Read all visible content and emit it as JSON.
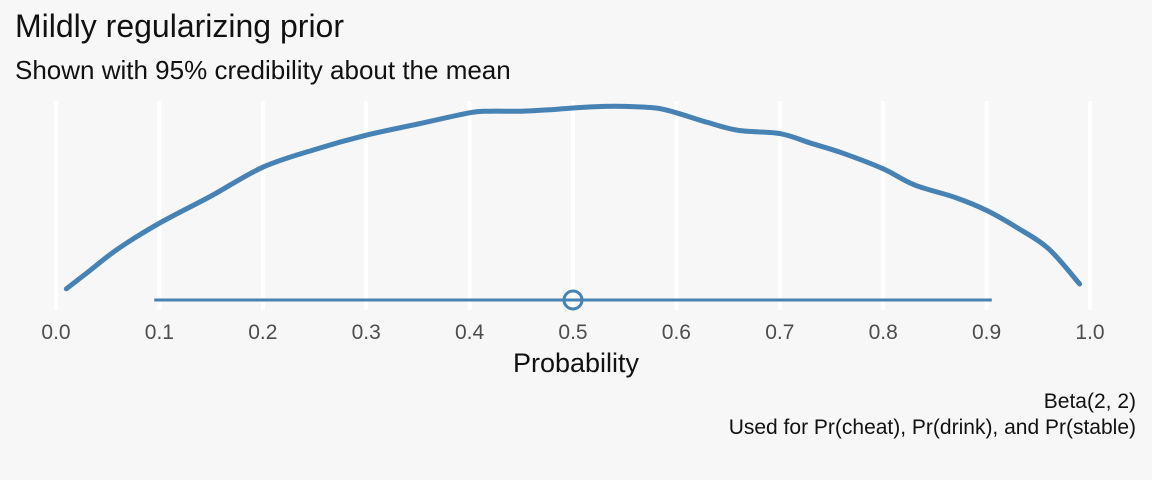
{
  "title": "Mildly regularizing prior",
  "subtitle": "Shown with 95% credibility about the mean",
  "caption_lines": [
    "Beta(2, 2)",
    "Used for Pr(cheat), Pr(drink), and Pr(stable)"
  ],
  "chart_data": {
    "type": "area",
    "xlabel": "Probability",
    "ylabel": "",
    "xlim": [
      0,
      1
    ],
    "xticks": [
      "0.0",
      "0.1",
      "0.2",
      "0.3",
      "0.4",
      "0.5",
      "0.6",
      "0.7",
      "0.8",
      "0.9",
      "1.0"
    ],
    "grid": "vertical",
    "density": {
      "x": [
        0.01,
        0.03,
        0.06,
        0.1,
        0.15,
        0.2,
        0.25,
        0.3,
        0.35,
        0.4,
        0.42,
        0.45,
        0.48,
        0.5,
        0.53,
        0.55,
        0.58,
        0.6,
        0.63,
        0.66,
        0.7,
        0.73,
        0.76,
        0.8,
        0.83,
        0.87,
        0.9,
        0.93,
        0.96,
        0.99
      ],
      "y": [
        0.07,
        0.17,
        0.32,
        0.48,
        0.65,
        0.83,
        0.94,
        1.03,
        1.1,
        1.17,
        1.18,
        1.18,
        1.19,
        1.2,
        1.21,
        1.21,
        1.2,
        1.17,
        1.11,
        1.06,
        1.04,
        0.98,
        0.92,
        0.82,
        0.72,
        0.64,
        0.56,
        0.45,
        0.32,
        0.1
      ]
    },
    "interval": {
      "level": 0.95,
      "low": 0.095,
      "high": 0.905,
      "center": 0.5
    },
    "color": "#4682b4"
  }
}
